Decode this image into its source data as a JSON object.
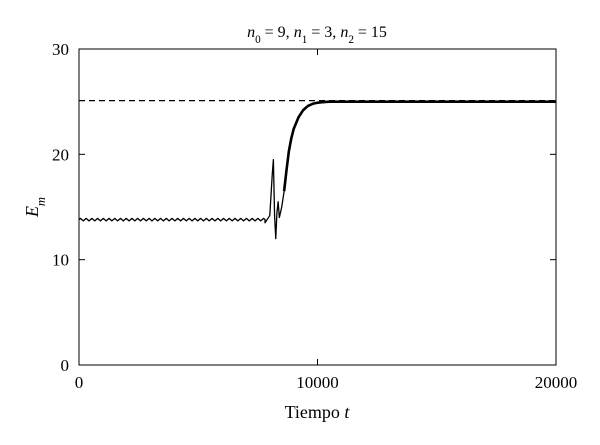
{
  "chart_data": {
    "type": "line",
    "title": "n0 = 9, n1 = 3, n2 = 15",
    "title_parts": [
      {
        "text": "n",
        "italic": true
      },
      {
        "text": "0",
        "sub": true
      },
      {
        "text": " = 9, ",
        "italic": false
      },
      {
        "text": "n",
        "italic": true
      },
      {
        "text": "1",
        "sub": true
      },
      {
        "text": " = 3, ",
        "italic": false
      },
      {
        "text": "n",
        "italic": true
      },
      {
        "text": "2",
        "sub": true
      },
      {
        "text": " = 15",
        "italic": false
      }
    ],
    "xlabel": "Tiempo t",
    "xlabel_parts": [
      {
        "text": "Tiempo ",
        "italic": false
      },
      {
        "text": "t",
        "italic": true
      }
    ],
    "ylabel": "Em",
    "ylabel_parts": [
      {
        "text": "E",
        "italic": true
      },
      {
        "text": "m",
        "sub": true,
        "italic": true
      }
    ],
    "xlim": [
      0,
      20000
    ],
    "ylim": [
      0,
      30
    ],
    "xticks": [
      0,
      10000,
      20000
    ],
    "yticks": [
      0,
      10,
      20,
      30
    ],
    "grid": false,
    "reference_line": {
      "y": 25.1,
      "style": "dashed",
      "x_end": 20000
    },
    "series": [
      {
        "color": "#000000",
        "x": [
          0,
          1000,
          2000,
          3000,
          4000,
          5000,
          6000,
          7000,
          7500,
          7800,
          8000,
          8100,
          8150,
          8200,
          8250,
          8300,
          8350,
          8400,
          8500,
          8600,
          8700,
          8800,
          8900,
          9000,
          9200,
          9400,
          9600,
          9800,
          10000,
          10200,
          10500,
          11000,
          12000,
          14000,
          16000,
          18000,
          20000
        ],
        "values": [
          13.8,
          13.8,
          13.8,
          13.8,
          13.8,
          13.8,
          13.8,
          13.8,
          13.75,
          13.5,
          14.2,
          18.0,
          19.5,
          14.2,
          12.0,
          14.5,
          15.5,
          14.0,
          15.0,
          16.5,
          18.5,
          20.3,
          21.5,
          22.4,
          23.5,
          24.2,
          24.6,
          24.8,
          24.9,
          24.95,
          25.0,
          25.0,
          25.0,
          25.0,
          25.0,
          25.0,
          25.0
        ],
        "oscillation_amplitude": 0.12,
        "oscillation_until": 7800
      }
    ]
  }
}
